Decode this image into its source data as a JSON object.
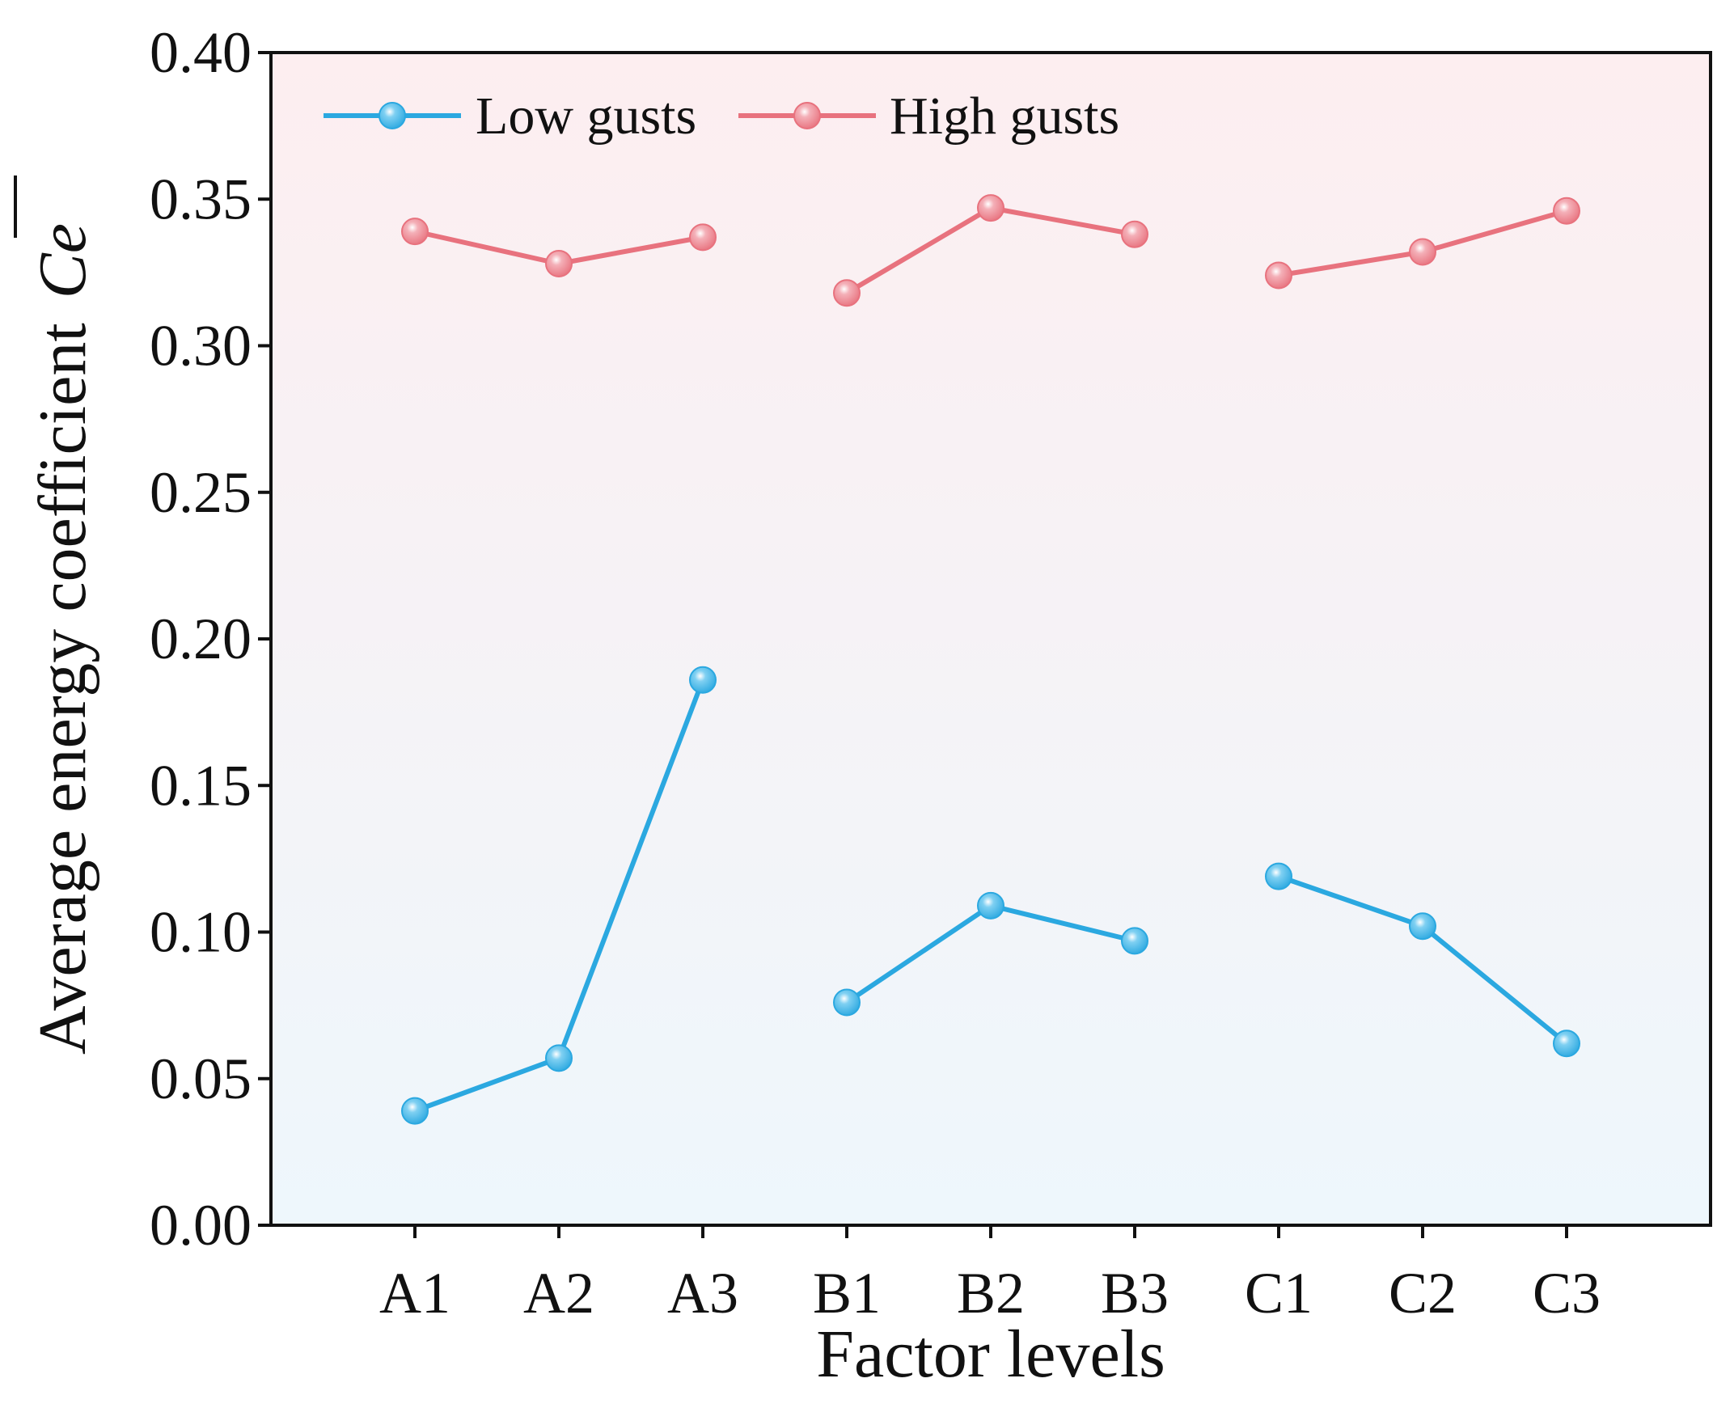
{
  "chart_data": {
    "type": "line",
    "title": "",
    "xlabel": "Factor levels",
    "ylabel": "Average energy coefficient",
    "ylabel_symbol": "Ce",
    "categories": [
      "A1",
      "A2",
      "A3",
      "B1",
      "B2",
      "B3",
      "C1",
      "C2",
      "C3"
    ],
    "groups": [
      [
        0,
        1,
        2
      ],
      [
        3,
        4,
        5
      ],
      [
        6,
        7,
        8
      ]
    ],
    "ylim": [
      0.0,
      0.4
    ],
    "yticks": [
      "0.00",
      "0.05",
      "0.10",
      "0.15",
      "0.20",
      "0.25",
      "0.30",
      "0.35",
      "0.40"
    ],
    "ytick_values": [
      0.0,
      0.05,
      0.1,
      0.15,
      0.2,
      0.25,
      0.3,
      0.35,
      0.4
    ],
    "grid": false,
    "legend_position": "top-left",
    "series": [
      {
        "name": "Low gusts",
        "color": "#2ba8e0",
        "values": [
          0.039,
          0.057,
          0.186,
          0.076,
          0.109,
          0.097,
          0.119,
          0.102,
          0.062
        ]
      },
      {
        "name": "High gusts",
        "color": "#e8727e",
        "values": [
          0.339,
          0.328,
          0.337,
          0.318,
          0.347,
          0.338,
          0.324,
          0.332,
          0.346
        ]
      }
    ],
    "background_gradient": [
      "#fdeef0",
      "#eef7fc"
    ]
  }
}
